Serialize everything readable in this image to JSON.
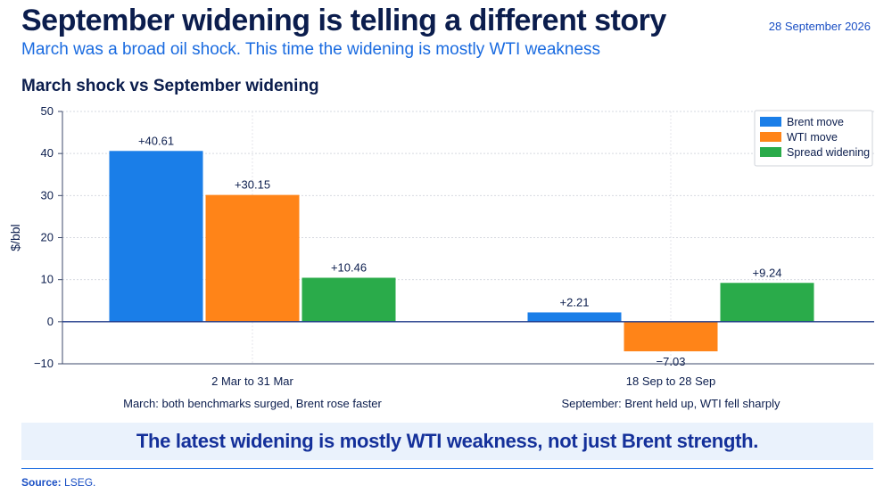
{
  "header": {
    "title": "September widening is telling a different story",
    "date": "28 September 2026",
    "subtitle": "March was a broad oil shock. This time the widening is mostly WTI weakness"
  },
  "callout": "The latest widening is mostly WTI weakness, not just Brent strength.",
  "footer": {
    "source_label": "Source:",
    "source_value": "LSEG."
  },
  "chart_data": {
    "type": "bar",
    "title": "March shock vs September widening",
    "ylabel": "$/bbl",
    "ylim": [
      -10,
      50
    ],
    "yticks": [
      -10,
      0,
      10,
      20,
      30,
      40,
      50
    ],
    "ytick_labels": [
      "−10",
      "0",
      "10",
      "20",
      "30",
      "40",
      "50"
    ],
    "categories": [
      "2 Mar to 31 Mar",
      "18 Sep to 28 Sep"
    ],
    "category_notes": [
      "March: both benchmarks surged, Brent rose faster",
      "September: Brent held up, WTI fell sharply"
    ],
    "series": [
      {
        "name": "Brent move",
        "color": "#1a7ee8",
        "values": [
          40.61,
          2.21
        ],
        "labels": [
          "+40.61",
          "+2.21"
        ]
      },
      {
        "name": "WTI move",
        "color": "#ff8418",
        "values": [
          30.15,
          -7.03
        ],
        "labels": [
          "+30.15",
          "−7.03"
        ]
      },
      {
        "name": "Spread widening",
        "color": "#2aab4a",
        "values": [
          10.46,
          9.24
        ],
        "labels": [
          "+10.46",
          "+9.24"
        ]
      }
    ],
    "grid": true,
    "legend_position": "top-right"
  }
}
